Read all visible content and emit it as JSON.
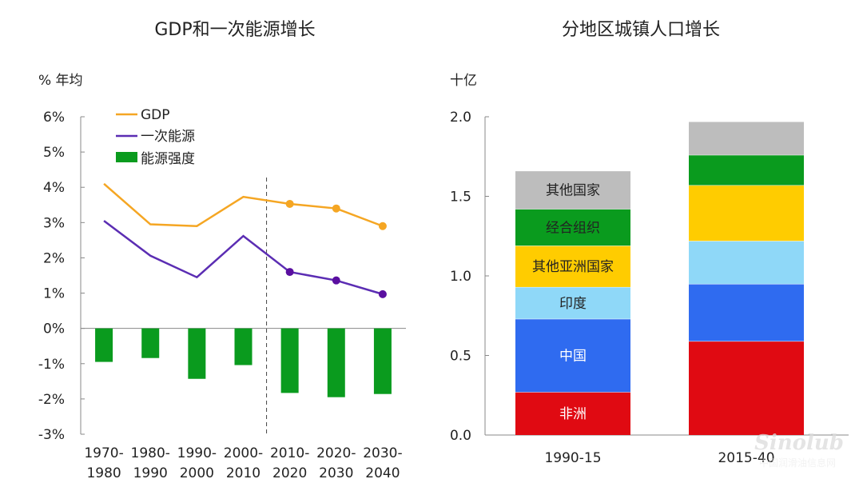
{
  "chart_data": [
    {
      "type": "line+bar",
      "title": "GDP和一次能源增长",
      "ylabel": "% 年均",
      "ylim": [
        -3,
        6
      ],
      "yticks": [
        "6%",
        "5%",
        "4%",
        "3%",
        "2%",
        "1%",
        "0%",
        "-1%",
        "-2%",
        "-3%"
      ],
      "ytick_values": [
        6,
        5,
        4,
        3,
        2,
        1,
        0,
        -1,
        -2,
        -3
      ],
      "categories": [
        [
          "1970-",
          "1980"
        ],
        [
          "1980-",
          "1990"
        ],
        [
          "1990-",
          "2000"
        ],
        [
          "2000-",
          "2010"
        ],
        [
          "2010-",
          "2020"
        ],
        [
          "2020-",
          "2030"
        ],
        [
          "2030-",
          "2040"
        ]
      ],
      "forecast_start_index": 4,
      "legend_position": "top-left",
      "series": [
        {
          "name": "GDP",
          "kind": "line",
          "color": "#F5A623",
          "values": [
            4.1,
            2.95,
            2.9,
            3.73,
            3.53,
            3.4,
            2.9
          ]
        },
        {
          "name": "一次能源",
          "kind": "line",
          "color": "#5B2DB3",
          "values": [
            3.05,
            2.06,
            1.45,
            2.62,
            1.6,
            1.36,
            0.97
          ]
        },
        {
          "name": "能源强度",
          "kind": "bar",
          "color": "#0A9B1E",
          "values": [
            -0.95,
            -0.84,
            -1.43,
            -1.04,
            -1.83,
            -1.95,
            -1.86
          ]
        }
      ]
    },
    {
      "type": "stacked-bar",
      "title": "分地区城镇人口增长",
      "ylabel": "十亿",
      "ylim": [
        0,
        2.0
      ],
      "yticks": [
        "2.0",
        "1.5",
        "1.0",
        "0.5",
        "0.0"
      ],
      "ytick_values": [
        2.0,
        1.5,
        1.0,
        0.5,
        0.0
      ],
      "categories": [
        "1990-15",
        "2015-40"
      ],
      "series": [
        {
          "name": "非洲",
          "color": "#E00A12",
          "label_color": "#ffffff",
          "values": [
            0.27,
            0.59
          ]
        },
        {
          "name": "中国",
          "color": "#2F6BF0",
          "label_color": "#ffffff",
          "values": [
            0.46,
            0.36
          ]
        },
        {
          "name": "印度",
          "color": "#8FD8F8",
          "label_color": "#222222",
          "values": [
            0.2,
            0.27
          ]
        },
        {
          "name": "其他亚洲国家",
          "color": "#FFCC00",
          "label_color": "#222222",
          "values": [
            0.26,
            0.35
          ]
        },
        {
          "name": "经合组织",
          "color": "#0A9B1E",
          "label_color": "#222222",
          "values": [
            0.23,
            0.19
          ]
        },
        {
          "name": "其他国家",
          "color": "#BDBDBD",
          "label_color": "#222222",
          "values": [
            0.24,
            0.21
          ]
        }
      ]
    }
  ],
  "watermark": {
    "logo": "Sinolub",
    "domain": ".com",
    "name": "中国润滑油信息网"
  }
}
